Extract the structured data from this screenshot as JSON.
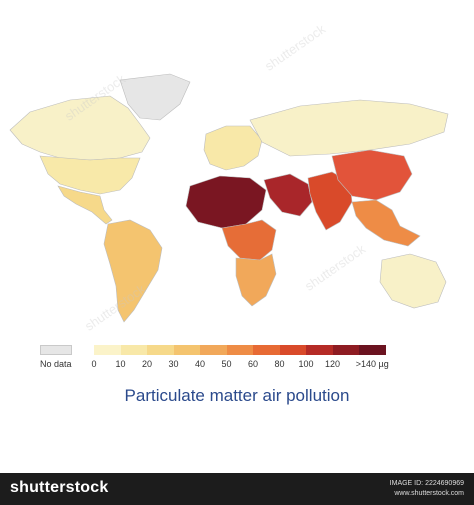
{
  "map": {
    "title": "Particulate matter air pollution",
    "legend": {
      "no_data_label": "No data",
      "no_data_color": "#e6e6e6",
      "tick_labels": [
        "0",
        "10",
        "20",
        "30",
        "40",
        "50",
        "60",
        "80",
        "100",
        "120",
        ">140 µg"
      ],
      "colors": [
        "#fbf3c9",
        "#f8e8a8",
        "#f6d98a",
        "#f4c46f",
        "#f1a85a",
        "#ee8c46",
        "#e76a34",
        "#d94a2a",
        "#b52b26",
        "#8e1c22",
        "#6b1320"
      ]
    },
    "regions": [
      {
        "name": "Canada",
        "color": "#f8f1c8"
      },
      {
        "name": "United States",
        "color": "#f8e9a9"
      },
      {
        "name": "Mexico",
        "color": "#f6d98a"
      },
      {
        "name": "Greenland",
        "color": "#e6e6e6"
      },
      {
        "name": "South America",
        "color": "#f4c46f"
      },
      {
        "name": "Europe",
        "color": "#f8e8a8"
      },
      {
        "name": "Russia",
        "color": "#f8f1c8"
      },
      {
        "name": "Sahara / Sahel",
        "color": "#7a1622"
      },
      {
        "name": "Central Africa",
        "color": "#e66d37"
      },
      {
        "name": "Southern Africa",
        "color": "#f1a85a"
      },
      {
        "name": "Arabian Peninsula",
        "color": "#a9262a"
      },
      {
        "name": "South Asia",
        "color": "#d94a2a"
      },
      {
        "name": "China",
        "color": "#e2543a"
      },
      {
        "name": "Southeast Asia",
        "color": "#ee8c46"
      },
      {
        "name": "Australia",
        "color": "#f8f1c8"
      }
    ]
  },
  "footer": {
    "brand": "shutterstock",
    "image_id": "IMAGE ID: 2224690969",
    "site": "www.shutterstock.com"
  },
  "watermark": "shutterstock"
}
